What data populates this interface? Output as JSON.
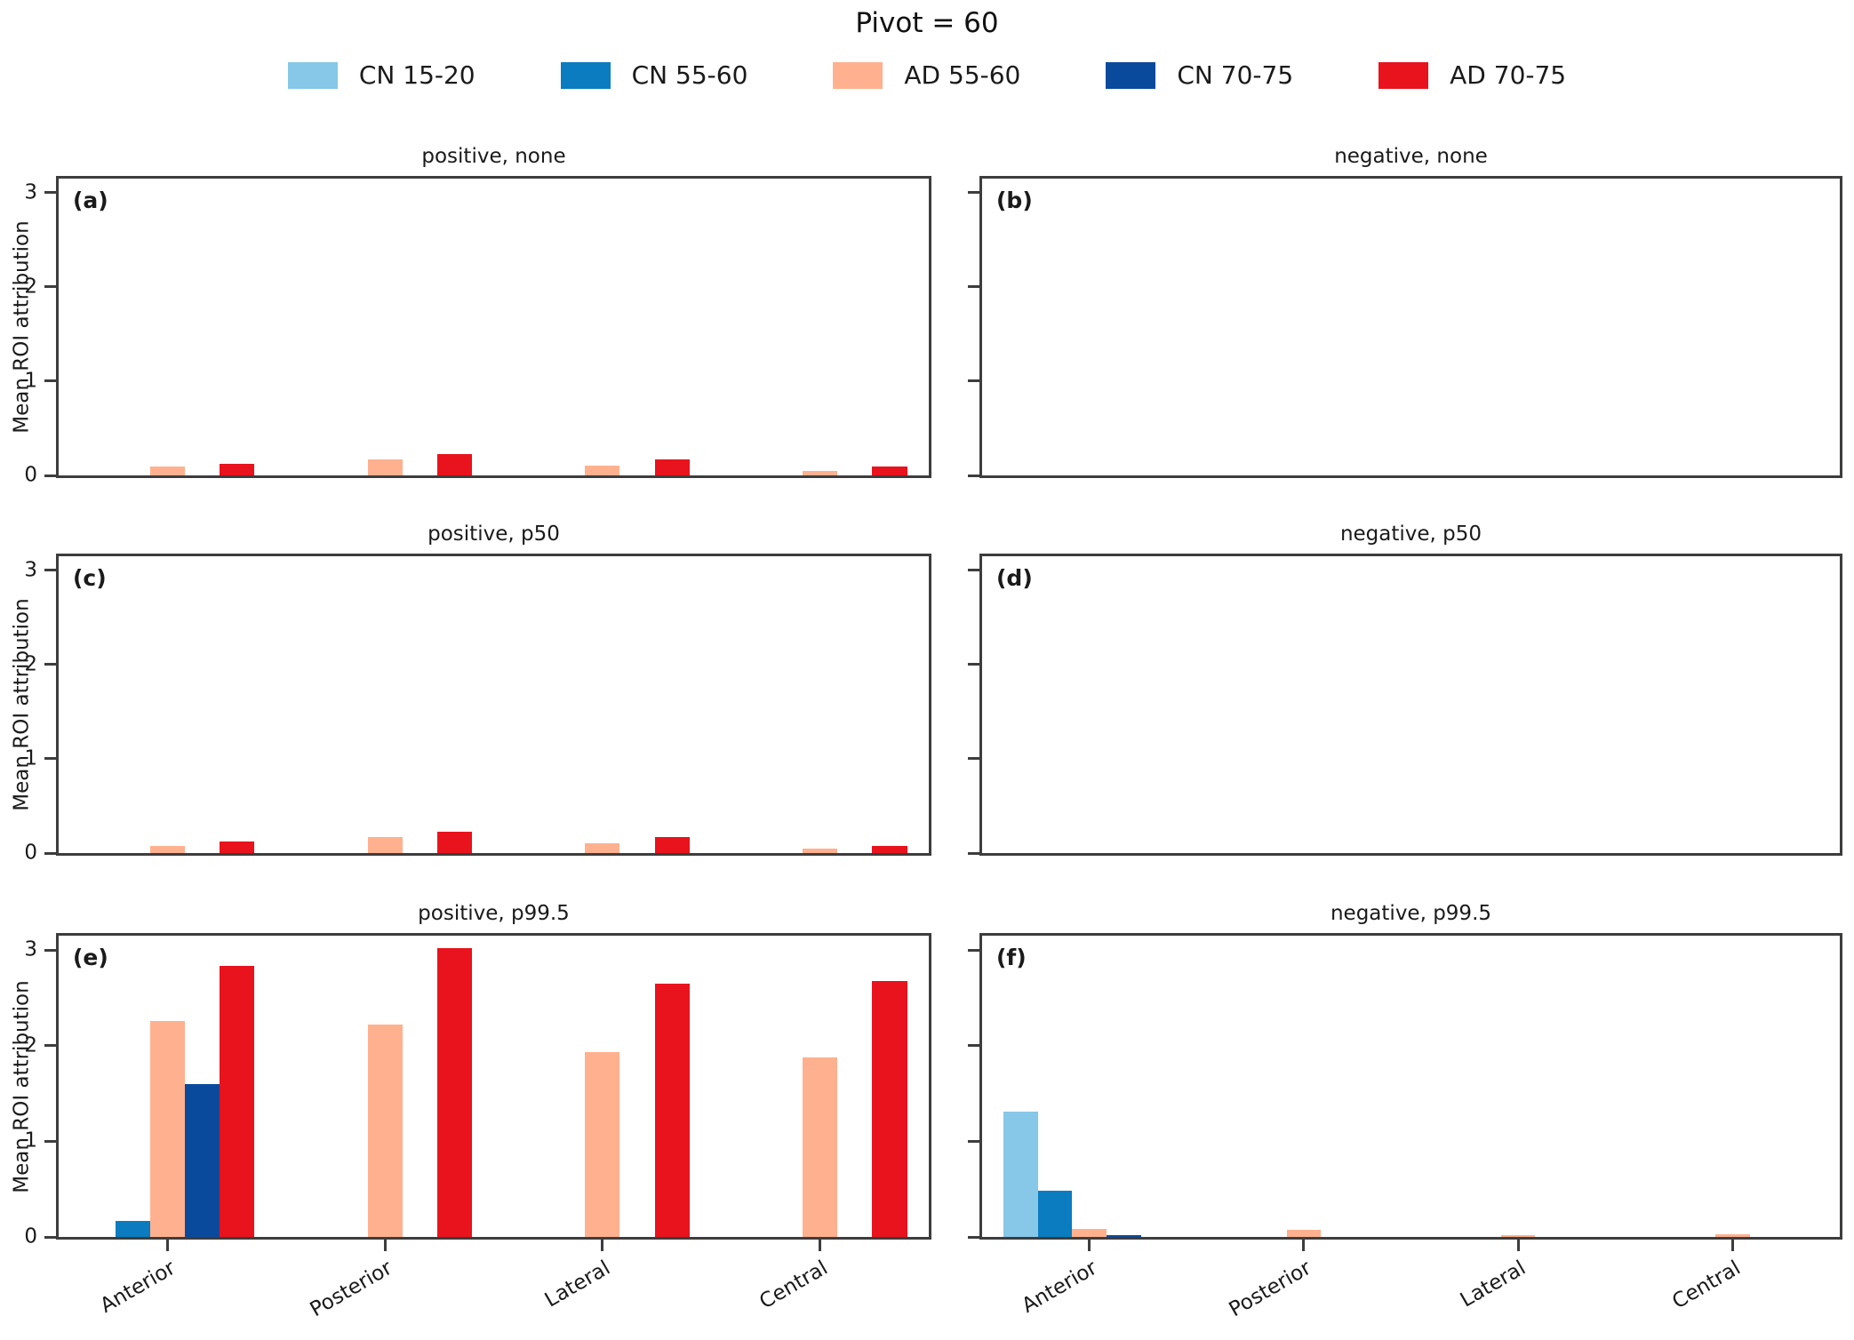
{
  "figure_title": "Pivot = 60",
  "legend": {
    "entries": [
      {
        "label": "CN 15-20",
        "color": "#87c7e8"
      },
      {
        "label": "CN 55-60",
        "color": "#0a7cbf"
      },
      {
        "label": "AD 55-60",
        "color": "#ffb18f"
      },
      {
        "label": "CN 70-75",
        "color": "#0a4a9c"
      },
      {
        "label": "AD 70-75",
        "color": "#e8131d"
      }
    ]
  },
  "chart_data": {
    "type": "bar",
    "title": "Pivot = 60",
    "categories": [
      "Anterior",
      "Posterior",
      "Lateral",
      "Central"
    ],
    "ylabel": "Mean ROI attribution",
    "yticks": [
      "0",
      "1",
      "2",
      "3"
    ],
    "ylim": [
      0,
      3.15
    ],
    "grid": false,
    "legend_position": "top",
    "series_names": [
      "CN 15-20",
      "CN 55-60",
      "AD 55-60",
      "CN 70-75",
      "AD 70-75"
    ],
    "series_colors": [
      "#87c7e8",
      "#0a7cbf",
      "#ffb18f",
      "#0a4a9c",
      "#e8131d"
    ],
    "panels": [
      {
        "id": "a",
        "label": "(a)",
        "title": "positive, none",
        "row": 0,
        "col": 0,
        "series": [
          {
            "name": "AD 55-60",
            "values": [
              0.09,
              0.17,
              0.1,
              0.05
            ]
          },
          {
            "name": "AD 70-75",
            "values": [
              0.12,
              0.23,
              0.17,
              0.09
            ]
          }
        ]
      },
      {
        "id": "b",
        "label": "(b)",
        "title": "negative, none",
        "row": 0,
        "col": 1,
        "series": []
      },
      {
        "id": "c",
        "label": "(c)",
        "title": "positive, p50",
        "row": 1,
        "col": 0,
        "series": [
          {
            "name": "AD 55-60",
            "values": [
              0.08,
              0.17,
              0.1,
              0.05
            ]
          },
          {
            "name": "AD 70-75",
            "values": [
              0.12,
              0.23,
              0.17,
              0.08
            ]
          }
        ]
      },
      {
        "id": "d",
        "label": "(d)",
        "title": "negative, p50",
        "row": 1,
        "col": 1,
        "series": []
      },
      {
        "id": "e",
        "label": "(e)",
        "title": "positive, p99.5",
        "row": 2,
        "col": 0,
        "series": [
          {
            "name": "CN 55-60",
            "values": [
              0.17,
              0,
              0,
              0
            ]
          },
          {
            "name": "AD 55-60",
            "values": [
              2.26,
              2.22,
              1.93,
              1.88
            ]
          },
          {
            "name": "CN 70-75",
            "values": [
              1.6,
              0,
              0,
              0
            ]
          },
          {
            "name": "AD 70-75",
            "values": [
              2.83,
              3.02,
              2.65,
              2.68
            ]
          }
        ]
      },
      {
        "id": "f",
        "label": "(f)",
        "title": "negative, p99.5",
        "row": 2,
        "col": 1,
        "series": [
          {
            "name": "CN 15-20",
            "values": [
              1.31,
              0,
              0,
              0
            ]
          },
          {
            "name": "CN 55-60",
            "values": [
              0.48,
              0,
              0,
              0
            ]
          },
          {
            "name": "AD 55-60",
            "values": [
              0.08,
              0.07,
              0.02,
              0.03
            ]
          },
          {
            "name": "CN 70-75",
            "values": [
              0.02,
              0,
              0,
              0
            ]
          }
        ]
      }
    ]
  }
}
